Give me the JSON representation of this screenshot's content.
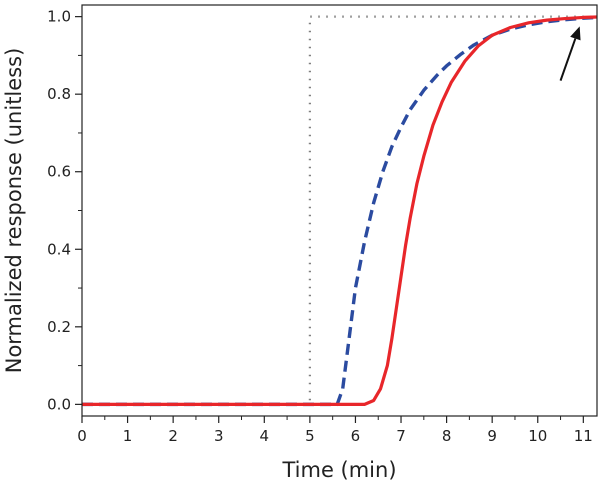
{
  "chart_data": {
    "type": "line",
    "title": "",
    "xlabel": "Time (min)",
    "ylabel": "Normalized response (unitless)",
    "xlim": [
      0,
      11.3
    ],
    "ylim": [
      -0.03,
      1.03
    ],
    "x_ticks": [
      0,
      1,
      2,
      3,
      4,
      5,
      6,
      7,
      8,
      9,
      10,
      11
    ],
    "y_ticks": [
      0.0,
      0.2,
      0.4,
      0.6,
      0.8,
      1.0
    ],
    "x_tick_labels": [
      "0",
      "1",
      "2",
      "3",
      "4",
      "5",
      "6",
      "7",
      "8",
      "9",
      "10",
      "11"
    ],
    "y_tick_labels": [
      "0.0",
      "0.2",
      "0.4",
      "0.6",
      "0.8",
      "1.0"
    ],
    "grid": false,
    "legend": "none",
    "series": [
      {
        "style": "dotted",
        "color": "#808080",
        "x": [
          0,
          5,
          5,
          11.3
        ],
        "y": [
          0,
          0,
          1,
          1
        ]
      },
      {
        "style": "dashed",
        "color": "#2b4ba0",
        "x": [
          0,
          5.6,
          5.72,
          5.85,
          6.0,
          6.2,
          6.4,
          6.6,
          6.8,
          7.0,
          7.2,
          7.5,
          7.8,
          8.0,
          8.3,
          8.6,
          9.0,
          9.4,
          9.8,
          10.2,
          10.6,
          11.0,
          11.3
        ],
        "y": [
          0.0,
          0.0,
          0.04,
          0.16,
          0.3,
          0.42,
          0.52,
          0.6,
          0.665,
          0.715,
          0.76,
          0.81,
          0.85,
          0.873,
          0.902,
          0.927,
          0.952,
          0.968,
          0.979,
          0.987,
          0.992,
          0.996,
          0.998
        ]
      },
      {
        "style": "solid",
        "color": "#e8262a",
        "x": [
          0,
          6.2,
          6.4,
          6.55,
          6.7,
          6.8,
          6.9,
          7.0,
          7.1,
          7.2,
          7.35,
          7.5,
          7.7,
          7.9,
          8.1,
          8.4,
          8.7,
          9.0,
          9.4,
          9.8,
          10.2,
          10.6,
          11.0,
          11.3
        ],
        "y": [
          0.0,
          0.0,
          0.01,
          0.04,
          0.1,
          0.17,
          0.25,
          0.33,
          0.41,
          0.48,
          0.57,
          0.64,
          0.72,
          0.78,
          0.83,
          0.885,
          0.925,
          0.952,
          0.972,
          0.984,
          0.991,
          0.995,
          0.998,
          0.999
        ]
      }
    ],
    "annotations": [
      {
        "type": "arrow",
        "from": [
          10.5,
          0.835
        ],
        "to": [
          10.92,
          0.975
        ],
        "color": "#111111"
      }
    ]
  }
}
